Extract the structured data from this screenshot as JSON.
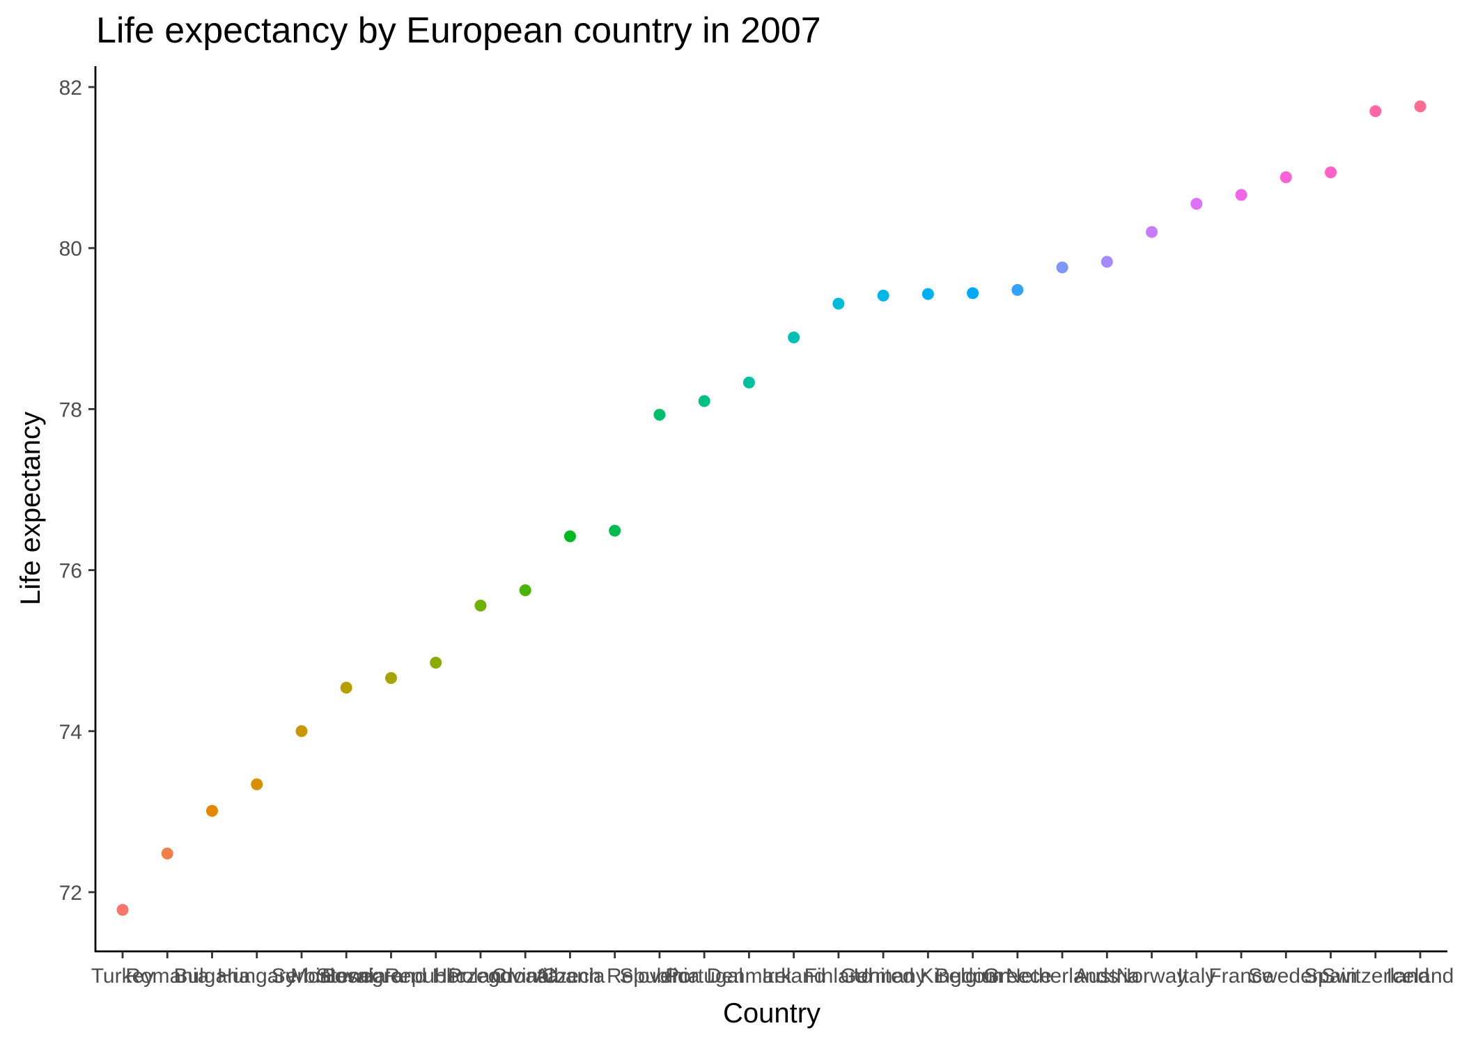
{
  "chart_data": {
    "type": "scatter",
    "title": "Life expectancy by European country in 2007",
    "xlabel": "Country",
    "ylabel": "Life expectancy",
    "ylim": [
      71.3,
      82.3
    ],
    "yticks": [
      72,
      74,
      76,
      78,
      80,
      82
    ],
    "grid": false,
    "legend": "none",
    "categories": [
      "Turkey",
      "Romania",
      "Bulgaria",
      "Hungary",
      "Serbia",
      "Montenegro",
      "Slovak Republic",
      "Bosnia and Herzegovina",
      "Poland",
      "Croatia",
      "Albania",
      "Czech Republic",
      "Slovenia",
      "Portugal",
      "Denmark",
      "Ireland",
      "Finland",
      "Germany",
      "United Kingdom",
      "Belgium",
      "Greece",
      "Netherlands",
      "Austria",
      "Norway",
      "Italy",
      "France",
      "Sweden",
      "Spain",
      "Switzerland",
      "Iceland"
    ],
    "values": [
      71.78,
      72.48,
      73.01,
      73.34,
      74.0,
      74.54,
      74.66,
      74.85,
      75.56,
      75.75,
      76.42,
      76.49,
      77.93,
      78.1,
      78.33,
      78.89,
      79.31,
      79.41,
      79.43,
      79.44,
      79.48,
      79.76,
      79.83,
      80.2,
      80.55,
      80.66,
      80.88,
      80.94,
      81.7,
      81.76
    ],
    "colors": [
      "#F8766D",
      "#EF7F49",
      "#E58700",
      "#D89000",
      "#C99800",
      "#B79F00",
      "#A3A500",
      "#8CAB00",
      "#6FB000",
      "#49B500",
      "#00B81F",
      "#00BB4E",
      "#00BE6C",
      "#00C086",
      "#00C19F",
      "#00BFB7",
      "#00BCD8",
      "#00B7E9",
      "#00B0F6",
      "#00A9FF",
      "#35A2FF",
      "#7F96FF",
      "#A58AFF",
      "#C77CFF",
      "#DF70F8",
      "#F265EA",
      "#FB61D7",
      "#FF61C9",
      "#FF66A8",
      "#FF6C91"
    ]
  }
}
